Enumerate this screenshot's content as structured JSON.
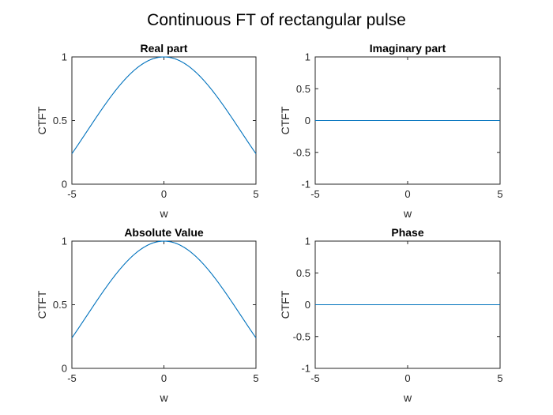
{
  "figure": {
    "title": "Continuous FT of rectangular pulse"
  },
  "colors": {
    "series": "#0072BD",
    "axes": "#262626",
    "background": "#ffffff"
  },
  "chart_data": [
    {
      "type": "line",
      "title": "Real part",
      "xlabel": "w",
      "ylabel": "CTFT",
      "xlim": [
        -5,
        5
      ],
      "ylim": [
        0,
        1
      ],
      "xticks": [
        -5,
        0,
        5
      ],
      "yticks": [
        0,
        0.5,
        1
      ],
      "xtick_labels": [
        "-5",
        "0",
        "5"
      ],
      "ytick_labels": [
        "0",
        "0.5",
        "1"
      ],
      "series": [
        {
          "name": "Real part",
          "function": "sinc_half",
          "x_range": [
            -5,
            5
          ],
          "samples": 201
        }
      ]
    },
    {
      "type": "line",
      "title": "Imaginary part",
      "xlabel": "w",
      "ylabel": "CTFT",
      "xlim": [
        -5,
        5
      ],
      "ylim": [
        -1,
        1
      ],
      "xticks": [
        -5,
        0,
        5
      ],
      "yticks": [
        -1,
        -0.5,
        0,
        0.5,
        1
      ],
      "xtick_labels": [
        "-5",
        "0",
        "5"
      ],
      "ytick_labels": [
        "-1",
        "-0.5",
        "0",
        "0.5",
        "1"
      ],
      "series": [
        {
          "name": "Imaginary part",
          "function": "zero",
          "x_range": [
            -5,
            5
          ],
          "samples": 201
        }
      ]
    },
    {
      "type": "line",
      "title": "Absolute Value",
      "xlabel": "w",
      "ylabel": "CTFT",
      "xlim": [
        -5,
        5
      ],
      "ylim": [
        0,
        1
      ],
      "xticks": [
        -5,
        0,
        5
      ],
      "yticks": [
        0,
        0.5,
        1
      ],
      "xtick_labels": [
        "-5",
        "0",
        "5"
      ],
      "ytick_labels": [
        "0",
        "0.5",
        "1"
      ],
      "series": [
        {
          "name": "Absolute Value",
          "function": "sinc_half_abs",
          "x_range": [
            -5,
            5
          ],
          "samples": 201
        }
      ]
    },
    {
      "type": "line",
      "title": "Phase",
      "xlabel": "w",
      "ylabel": "CTFT",
      "xlim": [
        -5,
        5
      ],
      "ylim": [
        -1,
        1
      ],
      "xticks": [
        -5,
        0,
        5
      ],
      "yticks": [
        -1,
        -0.5,
        0,
        0.5,
        1
      ],
      "xtick_labels": [
        "-5",
        "0",
        "5"
      ],
      "ytick_labels": [
        "-1",
        "-0.5",
        "0",
        "0.5",
        "1"
      ],
      "series": [
        {
          "name": "Phase",
          "function": "zero",
          "x_range": [
            -5,
            5
          ],
          "samples": 201
        }
      ]
    }
  ]
}
